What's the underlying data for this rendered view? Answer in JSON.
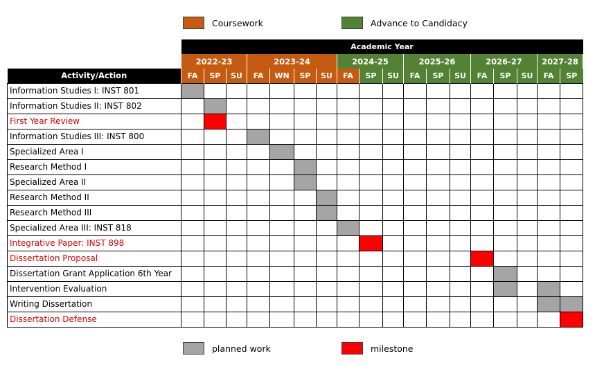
{
  "legend": {
    "coursework": {
      "label": "Coursework",
      "color": "#c55a11"
    },
    "candidacy": {
      "label": "Advance to Candidacy",
      "color": "#548235"
    },
    "planned": {
      "label": "planned work",
      "color": "#a5a5a5"
    },
    "milestone": {
      "label": "milestone",
      "color": "#ff0000"
    }
  },
  "header": {
    "academic_year": "Academic Year",
    "activity": "Activity/Action"
  },
  "years": [
    {
      "label": "2022-23",
      "span": 3,
      "phase": "coursework"
    },
    {
      "label": "2023-24",
      "span": 4,
      "phase": "coursework"
    },
    {
      "label": "2024-25",
      "span": 3,
      "phase": "candidacy"
    },
    {
      "label": "2025-26",
      "span": 3,
      "phase": "candidacy"
    },
    {
      "label": "2026-27",
      "span": 3,
      "phase": "candidacy"
    },
    {
      "label": "2027-28",
      "span": 2,
      "phase": "candidacy"
    }
  ],
  "semesters": [
    {
      "label": "FA",
      "phase": "coursework"
    },
    {
      "label": "SP",
      "phase": "coursework"
    },
    {
      "label": "SU",
      "phase": "coursework"
    },
    {
      "label": "FA",
      "phase": "coursework"
    },
    {
      "label": "WN",
      "phase": "coursework"
    },
    {
      "label": "SP",
      "phase": "coursework"
    },
    {
      "label": "SU",
      "phase": "coursework"
    },
    {
      "label": "FA",
      "phase": "coursework"
    },
    {
      "label": "SP",
      "phase": "candidacy"
    },
    {
      "label": "SU",
      "phase": "candidacy"
    },
    {
      "label": "FA",
      "phase": "candidacy"
    },
    {
      "label": "SP",
      "phase": "candidacy"
    },
    {
      "label": "SU",
      "phase": "candidacy"
    },
    {
      "label": "FA",
      "phase": "candidacy"
    },
    {
      "label": "SP",
      "phase": "candidacy"
    },
    {
      "label": "SU",
      "phase": "candidacy"
    },
    {
      "label": "FA",
      "phase": "candidacy"
    },
    {
      "label": "SP",
      "phase": "candidacy"
    }
  ],
  "activities": [
    {
      "label": "Information Studies I: INST 801",
      "type": "planned",
      "cols": [
        0
      ]
    },
    {
      "label": "Information Studies II: INST 802",
      "type": "planned",
      "cols": [
        1
      ]
    },
    {
      "label": "First Year Review",
      "type": "milestone",
      "cols": [
        1
      ]
    },
    {
      "label": "Information Studies III: INST 800",
      "type": "planned",
      "cols": [
        3
      ]
    },
    {
      "label": "Specialized Area I",
      "type": "planned",
      "cols": [
        4
      ]
    },
    {
      "label": "Research Method I",
      "type": "planned",
      "cols": [
        5
      ]
    },
    {
      "label": "Specialized Area II",
      "type": "planned",
      "cols": [
        5
      ]
    },
    {
      "label": "Research Method II",
      "type": "planned",
      "cols": [
        6
      ]
    },
    {
      "label": "Research Method III",
      "type": "planned",
      "cols": [
        6
      ]
    },
    {
      "label": "Specialized Area III: INST 818",
      "type": "planned",
      "cols": [
        7
      ]
    },
    {
      "label": "Integrative Paper: INST 898",
      "type": "milestone",
      "cols": [
        8
      ]
    },
    {
      "label": "Dissertation Proposal",
      "type": "milestone",
      "cols": [
        13
      ]
    },
    {
      "label": "Dissertation Grant Application 6th Year",
      "type": "planned",
      "cols": [
        14
      ]
    },
    {
      "label": "Intervention Evaluation",
      "type": "planned",
      "cols": [
        14,
        16
      ]
    },
    {
      "label": "Writing Dissertation",
      "type": "planned",
      "cols": [
        16,
        17
      ]
    },
    {
      "label": "Dissertation Defense",
      "type": "milestone",
      "cols": [
        17
      ]
    }
  ]
}
